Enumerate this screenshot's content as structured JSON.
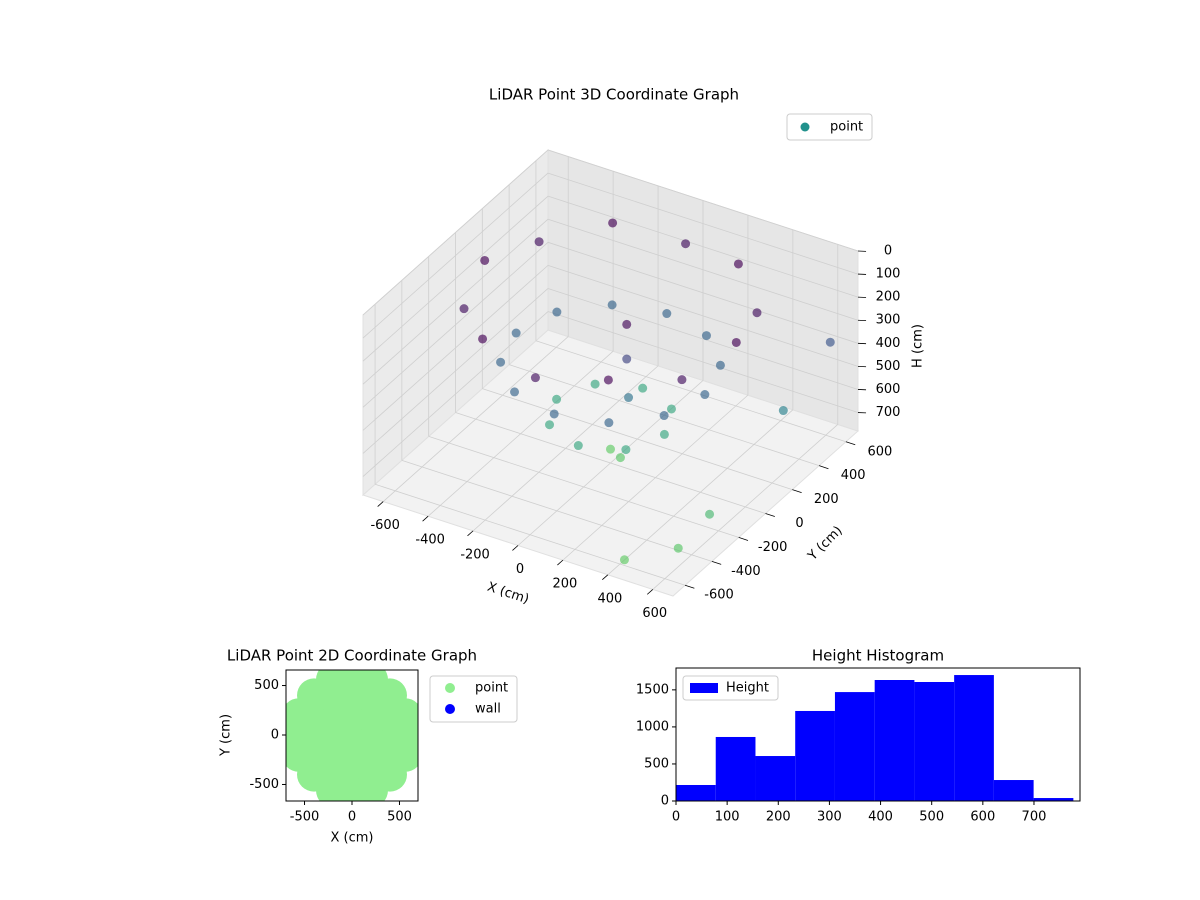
{
  "chart_data": [
    {
      "type": "scatter3d",
      "title": "LiDAR Point 3D Coordinate Graph",
      "xlabel": "X (cm)",
      "ylabel": "Y (cm)",
      "zlabel": "H (cm)",
      "xlim": [
        -690,
        690
      ],
      "ylim": [
        -690,
        690
      ],
      "zlim": [
        780,
        0
      ],
      "xticks": [
        -600,
        -400,
        -200,
        0,
        200,
        400,
        600
      ],
      "yticks": [
        -600,
        -400,
        -200,
        0,
        200,
        400,
        600
      ],
      "zticks": [
        0,
        100,
        200,
        300,
        400,
        500,
        600,
        700
      ],
      "grid": true,
      "legend": "upper right",
      "colormap": [
        "#440154",
        "#3b528b",
        "#21918c",
        "#5ec962"
      ],
      "series": [
        {
          "name": "point",
          "color": "#21918c",
          "x": [
            560,
            485,
            280,
            0,
            -280,
            -485,
            -560,
            -485,
            -280,
            0,
            280,
            485,
            420,
            364,
            210,
            0,
            -210,
            -364,
            -420,
            -364,
            -210,
            0,
            210,
            364,
            240,
            170,
            0,
            -170,
            -240,
            -170,
            0,
            170,
            0,
            80,
            120,
            120,
            140,
            450,
            600,
            620,
            650,
            680
          ],
          "y": [
            0,
            280,
            485,
            560,
            485,
            280,
            0,
            -280,
            -485,
            -560,
            -485,
            -280,
            0,
            210,
            364,
            420,
            364,
            210,
            0,
            -210,
            -364,
            -420,
            -364,
            -210,
            0,
            170,
            240,
            170,
            0,
            -170,
            -240,
            -170,
            0,
            -60,
            -80,
            -80,
            -100,
            -650,
            -500,
            -300,
            200,
            500
          ],
          "z": [
            80,
            120,
            80,
            120,
            80,
            120,
            80,
            120,
            80,
            120,
            80,
            120,
            350,
            350,
            350,
            350,
            350,
            350,
            350,
            350,
            350,
            350,
            350,
            350,
            580,
            580,
            580,
            580,
            580,
            580,
            580,
            580,
            720,
            700,
            100,
            250,
            400,
            720,
            700,
            650,
            450,
            300
          ]
        }
      ]
    },
    {
      "type": "scatter",
      "title": "LiDAR Point 2D Coordinate Graph",
      "xlabel": "X (cm)",
      "ylabel": "Y (cm)",
      "xlim": [
        -695,
        695
      ],
      "ylim": [
        -667,
        657
      ],
      "xticks": [
        -500,
        0,
        500
      ],
      "yticks": [
        -500,
        0,
        500
      ],
      "legend": "outside right",
      "series": [
        {
          "name": "point",
          "color": "#90ee90",
          "x": [
            -600,
            -400,
            -200,
            0,
            200,
            400,
            600,
            -560,
            -400,
            -200,
            0,
            200,
            400,
            560,
            -560,
            -400,
            -200,
            0,
            200,
            400,
            560,
            -400,
            -200,
            0,
            200,
            400,
            -400,
            -200,
            0,
            200,
            400,
            0,
            0,
            -200,
            200,
            -200,
            200
          ],
          "y": [
            0,
            0,
            0,
            0,
            0,
            0,
            0,
            200,
            200,
            200,
            200,
            200,
            200,
            200,
            -200,
            -200,
            -200,
            -200,
            -200,
            -200,
            -200,
            400,
            400,
            400,
            400,
            400,
            -400,
            -400,
            -400,
            -400,
            -400,
            600,
            -600,
            560,
            560,
            -560,
            -560
          ]
        },
        {
          "name": "wall",
          "color": "#0000ff",
          "x": [],
          "y": []
        }
      ]
    },
    {
      "type": "histogram",
      "title": "Height Histogram",
      "bins": [
        0,
        77.7,
        155.4,
        233.1,
        310.8,
        388.5,
        466.2,
        543.9,
        621.6,
        699.3,
        777
      ],
      "xlim": [
        0,
        790
      ],
      "ylim": [
        0,
        1795
      ],
      "xticks": [
        0,
        100,
        200,
        300,
        400,
        500,
        600,
        700
      ],
      "yticks": [
        0,
        500,
        1000,
        1500
      ],
      "legend": "upper left",
      "series": [
        {
          "name": "Height",
          "color": "#0000ff",
          "values": [
            216,
            864,
            607,
            1215,
            1470,
            1633,
            1606,
            1700,
            283,
            40
          ]
        }
      ]
    }
  ]
}
